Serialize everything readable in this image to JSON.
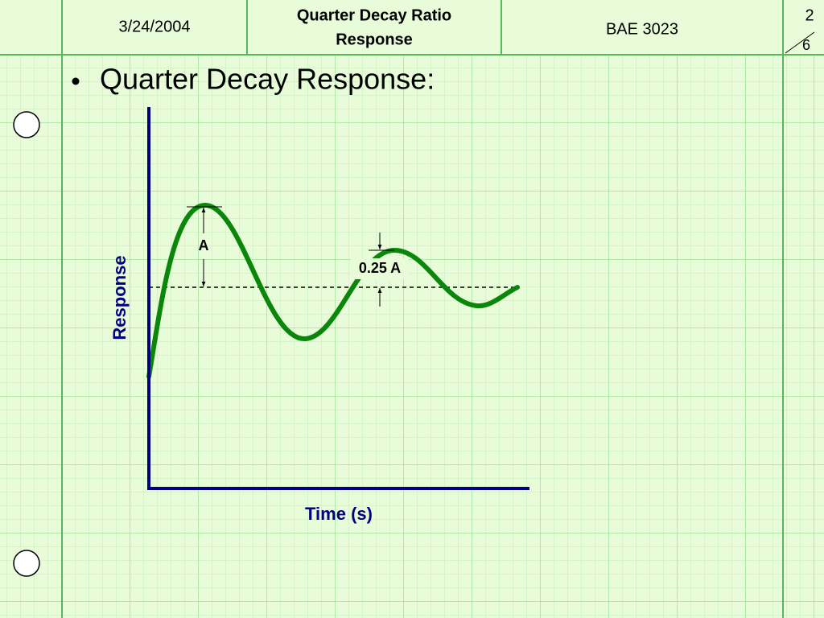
{
  "header": {
    "date": "3/24/2004",
    "title": [
      "Quarter Decay Ratio",
      "Response"
    ],
    "course": "BAE 3023",
    "page": {
      "current": "2",
      "total": "6"
    }
  },
  "bullet": "Quarter Decay Response:",
  "diagram": {
    "y_label": "Response",
    "x_label": "Time (s)",
    "annotations": [
      "A",
      "0.25 A"
    ]
  }
}
